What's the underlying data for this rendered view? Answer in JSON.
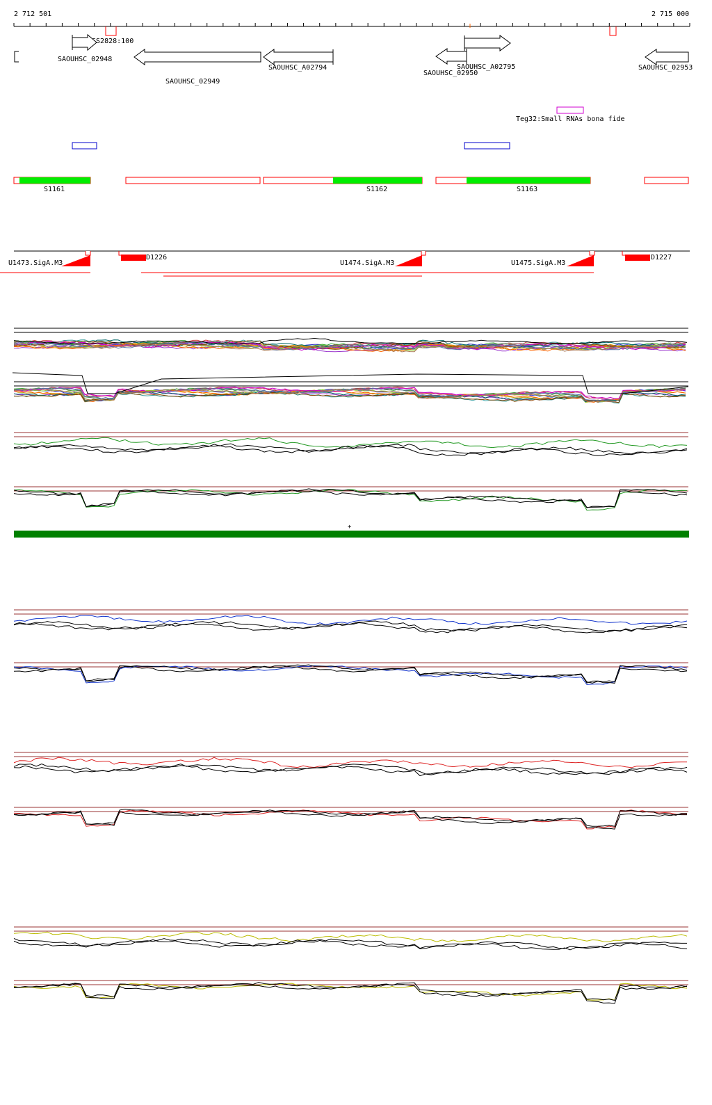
{
  "ruler": {
    "start_label": "2 712 501",
    "end_label": "2 715 000",
    "start_bp": 2712501,
    "end_bp": 2715000
  },
  "annotations": {
    "genes": [
      {
        "id": "SAOUHSC_02948",
        "strand": "+",
        "start_bp": 2712718,
        "end_bp": 2712805
      },
      {
        "id": "SAOUHSC_02949",
        "strand": "-",
        "start_bp": 2712929,
        "end_bp": 2713420
      },
      {
        "id": "SAOUHSC_A02794",
        "strand": "-",
        "start_bp": 2713428,
        "end_bp": 2713686
      },
      {
        "id": "SAOUHSC_02950",
        "strand": "-",
        "start_bp": 2714054,
        "end_bp": 2714169
      },
      {
        "id": "SAOUHSC_A02795",
        "strand": "+",
        "start_bp": 2714169,
        "end_bp": 2714343
      },
      {
        "id": "SAOUHSC_02953",
        "strand": "-",
        "start_bp": 2714833,
        "end_bp": 2715000
      }
    ],
    "tss": {
      "label": "TSS2828:100"
    },
    "srna": {
      "label": "Teg32:Small RNAs bona fide",
      "color": "#d000d0"
    },
    "segments": [
      "S1161",
      "S1162",
      "S1163"
    ],
    "promoters": [
      "U1473.SigA.M3",
      "U1474.SigA.M3",
      "U1475.SigA.M3"
    ],
    "downshifts": [
      "D1226",
      "D1227"
    ]
  },
  "colors": {
    "gene": "#000000",
    "segment": "#00ee00",
    "segment_outline": "#ff0000",
    "promoter": "#ff0000",
    "blue_box": "#0000cc",
    "strand_bar": "#008000",
    "reference_line": "#993333",
    "panel_green": "#229922",
    "panel_blue": "#1133cc",
    "panel_red": "#dd2222",
    "panel_yellow": "#bbbb00"
  }
}
